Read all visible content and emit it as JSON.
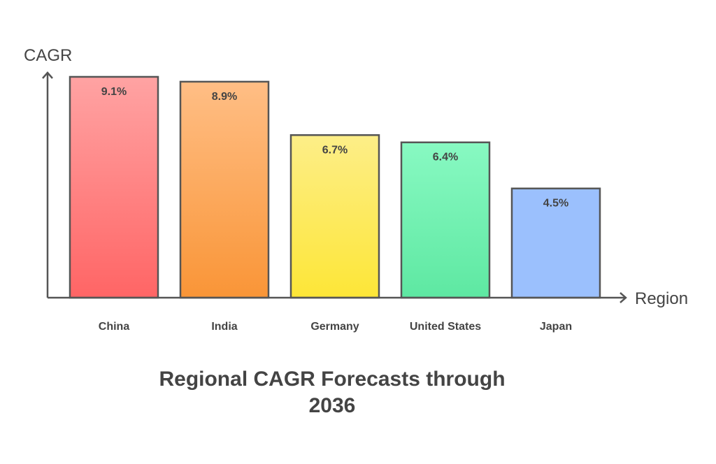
{
  "chart_data": {
    "type": "bar",
    "title": "Regional CAGR Forecasts through 2036",
    "title_lines": [
      "Regional CAGR Forecasts through",
      "2036"
    ],
    "xlabel": "Region",
    "ylabel": "CAGR",
    "categories": [
      "China",
      "India",
      "Germany",
      "United States",
      "Japan"
    ],
    "values": [
      9.1,
      8.9,
      6.7,
      6.4,
      4.5
    ],
    "value_labels": [
      "9.1%",
      "8.9%",
      "6.7%",
      "6.4%",
      "4.5%"
    ],
    "ylim": [
      0,
      9.3
    ],
    "grid": false,
    "colors": [
      [
        "#ffa3a3",
        "#ff6565"
      ],
      [
        "#ffbe85",
        "#f99537"
      ],
      [
        "#fdee88",
        "#fde637"
      ],
      [
        "#88f9c2",
        "#5ee8a2"
      ],
      [
        "#9bc0fd",
        "#9bc0fd"
      ]
    ]
  }
}
